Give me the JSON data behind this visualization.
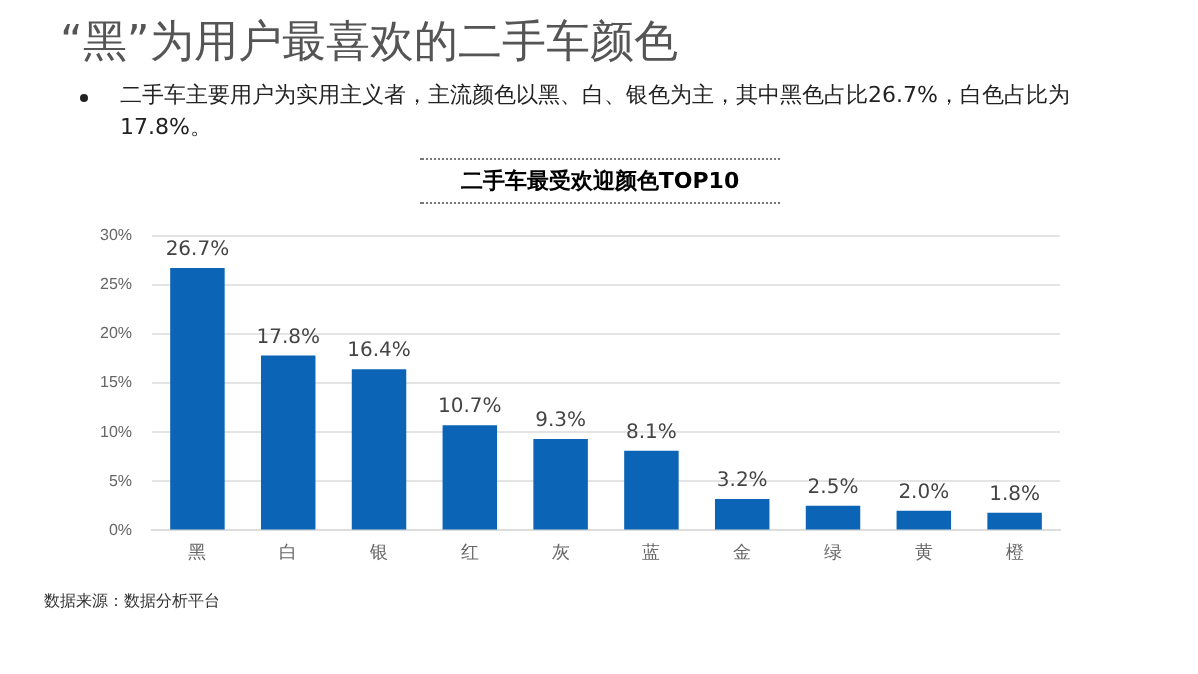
{
  "chart_data": {
    "type": "bar",
    "title": "“黑”为用户最喜欢的二手车颜色",
    "subtitle": "二手车主要用户为实用主义者，主流颜色以黑、白、银色为主，其中黑色占比26.7%，白色占比为17.8%。",
    "annotations": [
      "二手车最受欢迎颜色TOP10",
      "数据来源：数据分析平台"
    ],
    "categories": [
      "黑",
      "白",
      "银",
      "红",
      "灰",
      "蓝",
      "金",
      "绿",
      "黄",
      "橙"
    ],
    "values": [
      26.7,
      17.8,
      16.4,
      10.7,
      9.3,
      8.1,
      3.2,
      2.5,
      2.0,
      1.8
    ],
    "value_labels": [
      "26.7%",
      "17.8%",
      "16.4%",
      "10.7%",
      "9.3%",
      "8.1%",
      "3.2%",
      "2.5%",
      "2.0%",
      "1.8%"
    ],
    "color": "#0b64b5",
    "ylim": [
      0,
      30
    ],
    "yticks": [
      {
        "value": 0,
        "label": "0%"
      },
      {
        "value": 5,
        "label": "5%"
      },
      {
        "value": 10,
        "label": "10%"
      },
      {
        "value": 15,
        "label": "15%"
      },
      {
        "value": 20,
        "label": "20%"
      },
      {
        "value": 25,
        "label": "25%"
      },
      {
        "value": 30,
        "label": "30%"
      }
    ],
    "grid": "y",
    "legend": false
  }
}
